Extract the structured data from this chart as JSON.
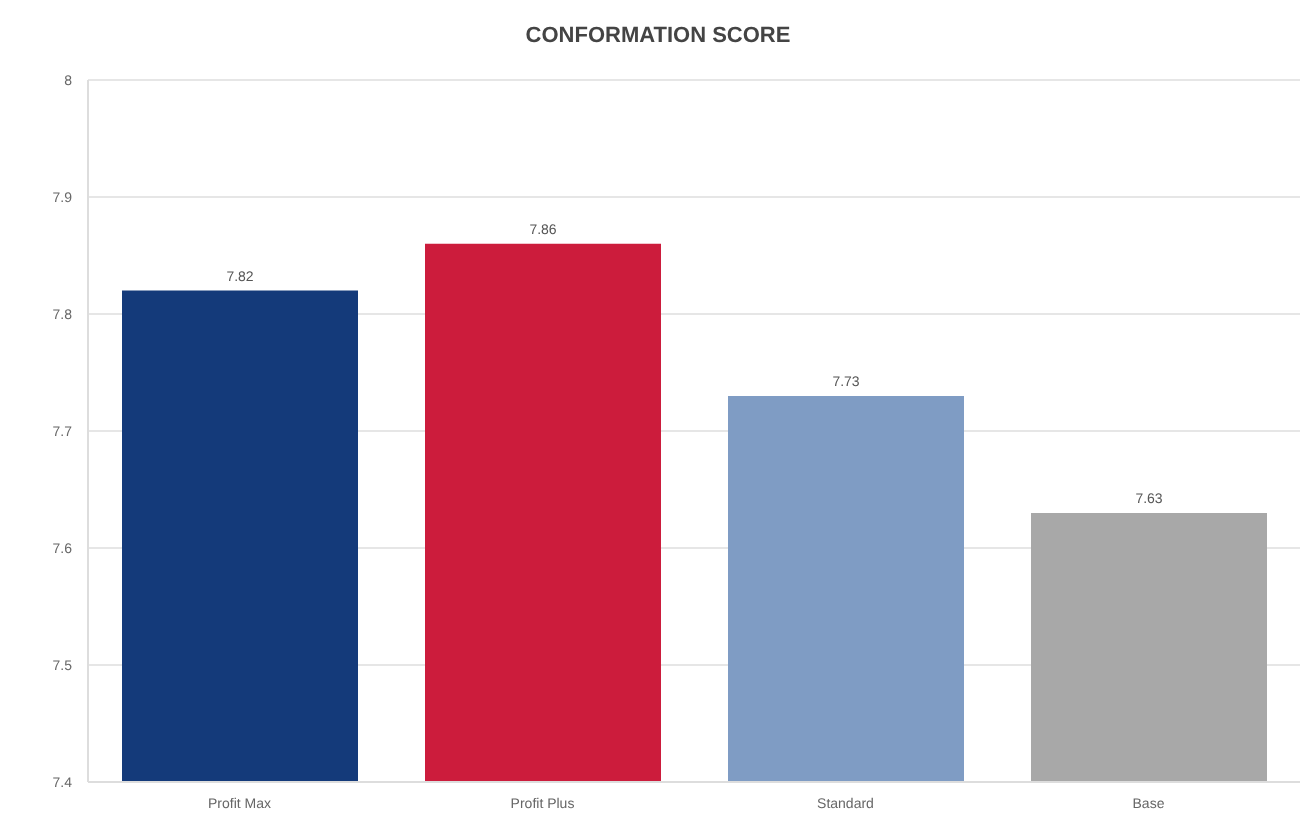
{
  "chart_data": {
    "type": "bar",
    "title": "CONFORMATION SCORE",
    "categories": [
      "Profit Max",
      "Profit Plus",
      "Standard",
      "Base"
    ],
    "values": [
      7.82,
      7.86,
      7.73,
      7.63
    ],
    "colors": [
      "#143a7a",
      "#cc1c3c",
      "#7f9cc4",
      "#a8a8a8"
    ],
    "ylim": [
      7.4,
      8
    ],
    "yticks": [
      7.4,
      7.5,
      7.6,
      7.7,
      7.8,
      7.9,
      8
    ],
    "grid": "y",
    "data_labels": true
  }
}
